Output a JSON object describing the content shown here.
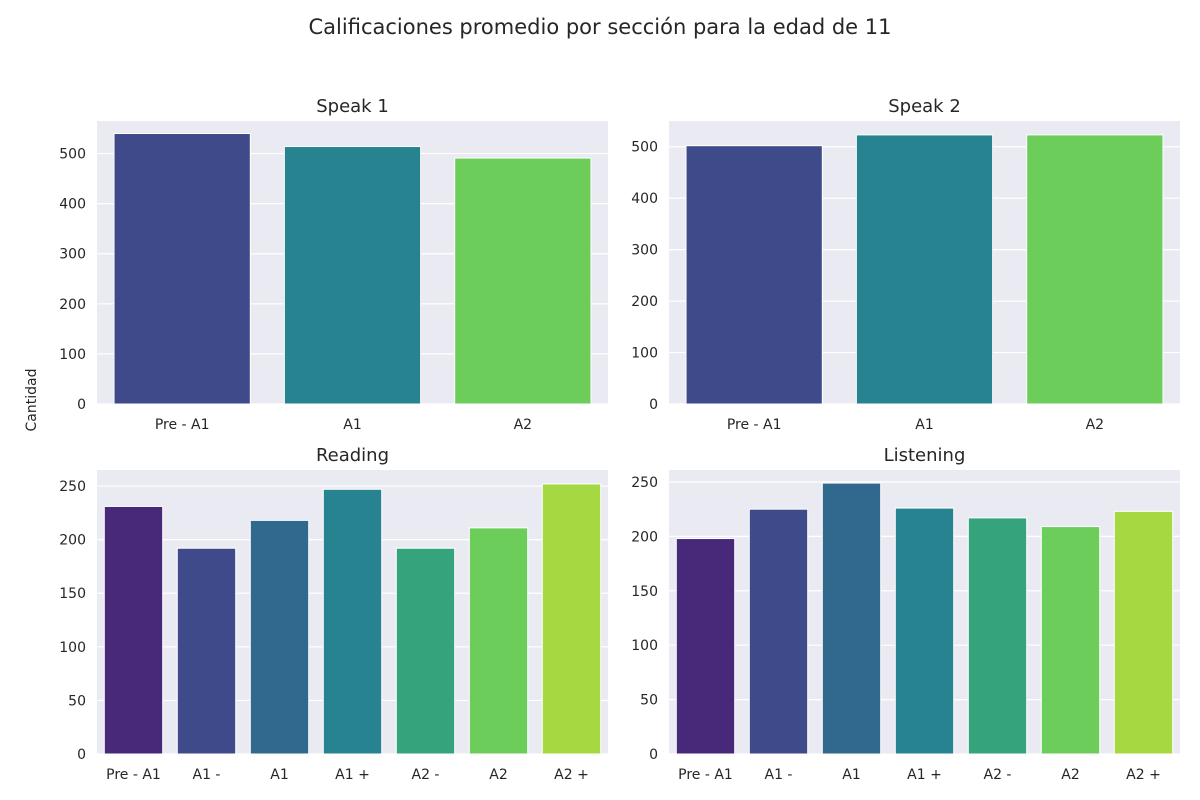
{
  "figure": {
    "title": "Calificaciones promedio por sección para la edad de 11",
    "ylabel": "Cantidad"
  },
  "palette": [
    "#482878",
    "#3e4a89",
    "#31688e",
    "#26838f",
    "#35a37b",
    "#6ccd5a",
    "#a6d841"
  ],
  "chart_data": [
    {
      "type": "bar",
      "title": "Speak 1",
      "categories": [
        "Pre - A1",
        "A1",
        "A2"
      ],
      "values": [
        540,
        514,
        491
      ],
      "colors": [
        "#3e4a89",
        "#26838f",
        "#6ccd5a"
      ],
      "ylim": [
        0,
        565
      ],
      "yticks": [
        0,
        100,
        200,
        300,
        400,
        500
      ],
      "grid": true
    },
    {
      "type": "bar",
      "title": "Speak 2",
      "categories": [
        "Pre - A1",
        "A1",
        "A2"
      ],
      "values": [
        502,
        523,
        523
      ],
      "colors": [
        "#3e4a89",
        "#26838f",
        "#6ccd5a"
      ],
      "ylim": [
        0,
        550
      ],
      "yticks": [
        0,
        100,
        200,
        300,
        400,
        500
      ],
      "grid": true
    },
    {
      "type": "bar",
      "title": "Reading",
      "categories": [
        "Pre - A1",
        "A1 -",
        "A1",
        "A1 +",
        "A2 -",
        "A2",
        "A2 +"
      ],
      "values": [
        231,
        192,
        218,
        247,
        192,
        211,
        252
      ],
      "colors": [
        "#482878",
        "#3e4a89",
        "#31688e",
        "#26838f",
        "#35a37b",
        "#6ccd5a",
        "#a6d841"
      ],
      "ylim": [
        0,
        265
      ],
      "yticks": [
        0,
        50,
        100,
        150,
        200,
        250
      ],
      "grid": true
    },
    {
      "type": "bar",
      "title": "Listening",
      "categories": [
        "Pre - A1",
        "A1 -",
        "A1",
        "A1 +",
        "A2 -",
        "A2",
        "A2 +"
      ],
      "values": [
        198,
        225,
        249,
        226,
        217,
        209,
        223
      ],
      "colors": [
        "#482878",
        "#3e4a89",
        "#31688e",
        "#26838f",
        "#35a37b",
        "#6ccd5a",
        "#a6d841"
      ],
      "ylim": [
        0,
        261
      ],
      "yticks": [
        0,
        50,
        100,
        150,
        200,
        250
      ],
      "grid": true
    }
  ]
}
